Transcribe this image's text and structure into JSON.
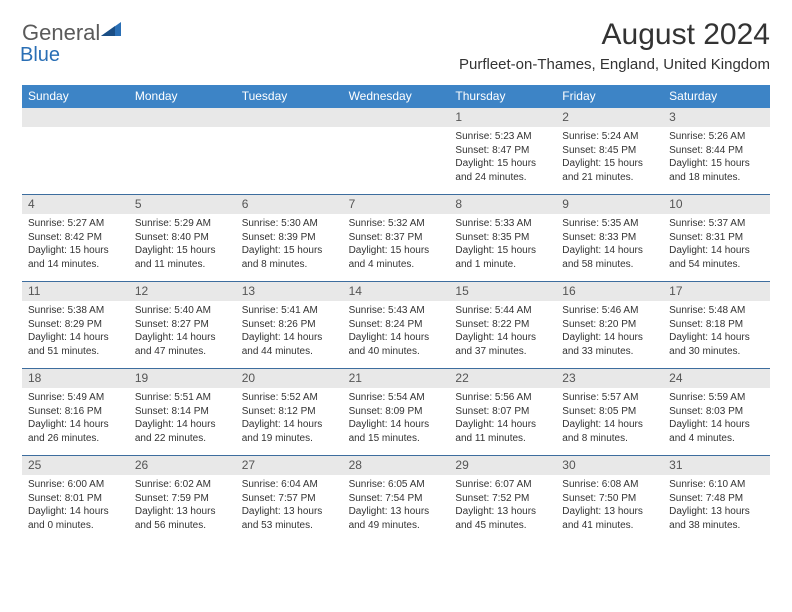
{
  "logo": {
    "textGray": "General",
    "textBlue": "Blue"
  },
  "title": "August 2024",
  "location": "Purfleet-on-Thames, England, United Kingdom",
  "colors": {
    "headerBar": "#3d84c6",
    "dayNumBg": "#e8e8e8",
    "weekDivider": "#3d6d9e",
    "logoBlue": "#2a6fb5",
    "logoGray": "#5a5a5a",
    "text": "#333333"
  },
  "weekdays": [
    "Sunday",
    "Monday",
    "Tuesday",
    "Wednesday",
    "Thursday",
    "Friday",
    "Saturday"
  ],
  "weeks": [
    [
      null,
      null,
      null,
      null,
      {
        "n": "1",
        "sunrise": "5:23 AM",
        "sunset": "8:47 PM",
        "daylight": "15 hours and 24 minutes."
      },
      {
        "n": "2",
        "sunrise": "5:24 AM",
        "sunset": "8:45 PM",
        "daylight": "15 hours and 21 minutes."
      },
      {
        "n": "3",
        "sunrise": "5:26 AM",
        "sunset": "8:44 PM",
        "daylight": "15 hours and 18 minutes."
      }
    ],
    [
      {
        "n": "4",
        "sunrise": "5:27 AM",
        "sunset": "8:42 PM",
        "daylight": "15 hours and 14 minutes."
      },
      {
        "n": "5",
        "sunrise": "5:29 AM",
        "sunset": "8:40 PM",
        "daylight": "15 hours and 11 minutes."
      },
      {
        "n": "6",
        "sunrise": "5:30 AM",
        "sunset": "8:39 PM",
        "daylight": "15 hours and 8 minutes."
      },
      {
        "n": "7",
        "sunrise": "5:32 AM",
        "sunset": "8:37 PM",
        "daylight": "15 hours and 4 minutes."
      },
      {
        "n": "8",
        "sunrise": "5:33 AM",
        "sunset": "8:35 PM",
        "daylight": "15 hours and 1 minute."
      },
      {
        "n": "9",
        "sunrise": "5:35 AM",
        "sunset": "8:33 PM",
        "daylight": "14 hours and 58 minutes."
      },
      {
        "n": "10",
        "sunrise": "5:37 AM",
        "sunset": "8:31 PM",
        "daylight": "14 hours and 54 minutes."
      }
    ],
    [
      {
        "n": "11",
        "sunrise": "5:38 AM",
        "sunset": "8:29 PM",
        "daylight": "14 hours and 51 minutes."
      },
      {
        "n": "12",
        "sunrise": "5:40 AM",
        "sunset": "8:27 PM",
        "daylight": "14 hours and 47 minutes."
      },
      {
        "n": "13",
        "sunrise": "5:41 AM",
        "sunset": "8:26 PM",
        "daylight": "14 hours and 44 minutes."
      },
      {
        "n": "14",
        "sunrise": "5:43 AM",
        "sunset": "8:24 PM",
        "daylight": "14 hours and 40 minutes."
      },
      {
        "n": "15",
        "sunrise": "5:44 AM",
        "sunset": "8:22 PM",
        "daylight": "14 hours and 37 minutes."
      },
      {
        "n": "16",
        "sunrise": "5:46 AM",
        "sunset": "8:20 PM",
        "daylight": "14 hours and 33 minutes."
      },
      {
        "n": "17",
        "sunrise": "5:48 AM",
        "sunset": "8:18 PM",
        "daylight": "14 hours and 30 minutes."
      }
    ],
    [
      {
        "n": "18",
        "sunrise": "5:49 AM",
        "sunset": "8:16 PM",
        "daylight": "14 hours and 26 minutes."
      },
      {
        "n": "19",
        "sunrise": "5:51 AM",
        "sunset": "8:14 PM",
        "daylight": "14 hours and 22 minutes."
      },
      {
        "n": "20",
        "sunrise": "5:52 AM",
        "sunset": "8:12 PM",
        "daylight": "14 hours and 19 minutes."
      },
      {
        "n": "21",
        "sunrise": "5:54 AM",
        "sunset": "8:09 PM",
        "daylight": "14 hours and 15 minutes."
      },
      {
        "n": "22",
        "sunrise": "5:56 AM",
        "sunset": "8:07 PM",
        "daylight": "14 hours and 11 minutes."
      },
      {
        "n": "23",
        "sunrise": "5:57 AM",
        "sunset": "8:05 PM",
        "daylight": "14 hours and 8 minutes."
      },
      {
        "n": "24",
        "sunrise": "5:59 AM",
        "sunset": "8:03 PM",
        "daylight": "14 hours and 4 minutes."
      }
    ],
    [
      {
        "n": "25",
        "sunrise": "6:00 AM",
        "sunset": "8:01 PM",
        "daylight": "14 hours and 0 minutes."
      },
      {
        "n": "26",
        "sunrise": "6:02 AM",
        "sunset": "7:59 PM",
        "daylight": "13 hours and 56 minutes."
      },
      {
        "n": "27",
        "sunrise": "6:04 AM",
        "sunset": "7:57 PM",
        "daylight": "13 hours and 53 minutes."
      },
      {
        "n": "28",
        "sunrise": "6:05 AM",
        "sunset": "7:54 PM",
        "daylight": "13 hours and 49 minutes."
      },
      {
        "n": "29",
        "sunrise": "6:07 AM",
        "sunset": "7:52 PM",
        "daylight": "13 hours and 45 minutes."
      },
      {
        "n": "30",
        "sunrise": "6:08 AM",
        "sunset": "7:50 PM",
        "daylight": "13 hours and 41 minutes."
      },
      {
        "n": "31",
        "sunrise": "6:10 AM",
        "sunset": "7:48 PM",
        "daylight": "13 hours and 38 minutes."
      }
    ]
  ]
}
